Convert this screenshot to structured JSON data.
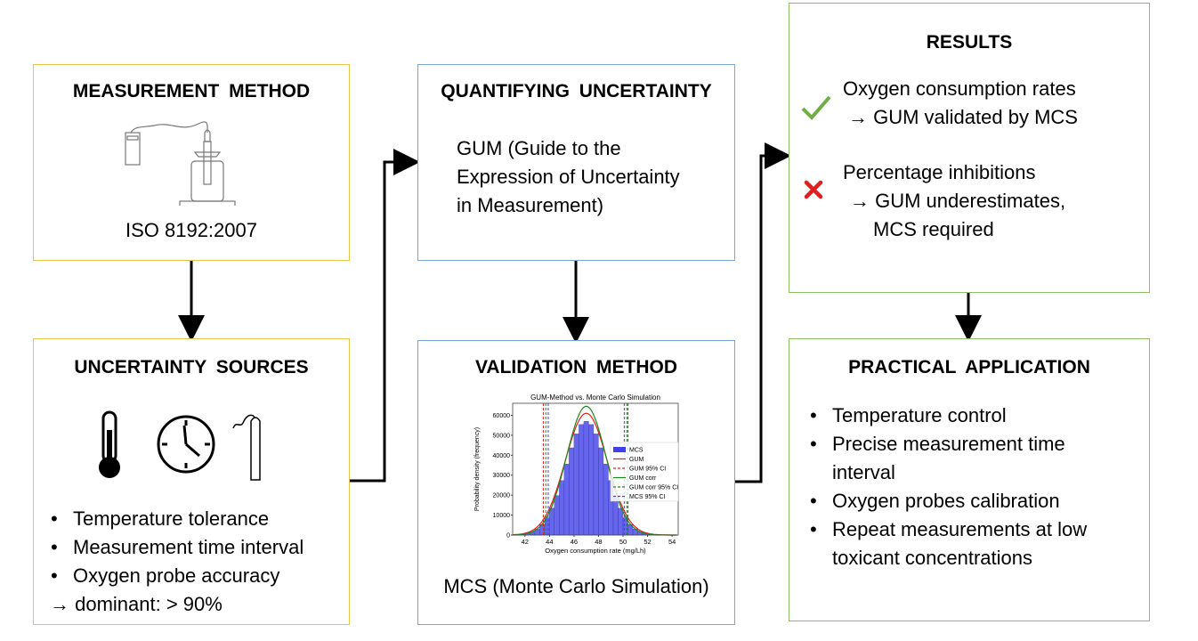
{
  "measurement": {
    "title": "MEASUREMENT  METHOD",
    "standard": "ISO 8192:2007"
  },
  "sources": {
    "title": "UNCERTAINTY  SOURCES",
    "items": [
      "Temperature tolerance",
      "Measurement time interval",
      "Oxygen probe accuracy"
    ],
    "conclusion": "→ dominant: > 90%"
  },
  "quantifying": {
    "title": "QUANTIFYING  UNCERTAINTY",
    "text": [
      "GUM (Guide to the",
      "Expression of Uncertainty",
      "in Measurement)"
    ]
  },
  "validation": {
    "title": "VALIDATION  METHOD",
    "caption": "MCS (Monte Carlo Simulation)"
  },
  "results": {
    "title": "RESULTS",
    "items": [
      {
        "icon": "check-icon",
        "line1": "Oxygen consumption rates",
        "line2": "→ GUM validated by MCS"
      },
      {
        "icon": "cross-icon",
        "line1": "Percentage inhibitions",
        "line2": "→ GUM underestimates,",
        "line3": "MCS required"
      }
    ]
  },
  "practical": {
    "title": "PRACTICAL  APPLICATION",
    "items": [
      "Temperature control",
      "Precise measurement time",
      "interval",
      "Oxygen probes calibration",
      "Repeat measurements at low",
      "toxicant concentrations"
    ]
  },
  "colors": {
    "check": "#70ad47",
    "cross": "#e02020",
    "mcs": "#4040e8",
    "gum": "#e02020",
    "gumcorr": "#1a8a1a"
  },
  "chart_data": {
    "type": "bar",
    "title": "GUM-Method vs. Monte Carlo Simulation",
    "xlabel": "Oxygen consumption rate (mg/Lh)",
    "ylabel": "Probability density (frequency)",
    "xlim": [
      41,
      54.5
    ],
    "ylim": [
      0,
      66000
    ],
    "xticks": [
      42,
      44,
      46,
      48,
      50,
      52,
      54
    ],
    "yticks": [
      0,
      10000,
      20000,
      30000,
      40000,
      50000,
      60000
    ],
    "bin_width": 0.4,
    "bins": [
      41.4,
      41.8,
      42.2,
      42.6,
      43.0,
      43.4,
      43.8,
      44.2,
      44.6,
      45.0,
      45.4,
      45.8,
      46.2,
      46.6,
      47.0,
      47.4,
      47.8,
      48.2,
      48.6,
      49.0,
      49.4,
      49.8,
      50.2,
      50.6,
      51.0,
      51.4,
      51.8,
      52.2,
      52.6,
      53.0
    ],
    "mcs": [
      180,
      400,
      830,
      1600,
      3000,
      5300,
      8700,
      13500,
      19800,
      27300,
      35600,
      43700,
      50700,
      55400,
      57000,
      55400,
      50700,
      43700,
      35600,
      27300,
      19800,
      13500,
      8700,
      5300,
      3000,
      1600,
      830,
      400,
      180,
      80
    ],
    "curves": [
      {
        "name": "GUM",
        "mean": 47,
        "sd": 1.72,
        "peak": 61000
      },
      {
        "name": "GUM corr",
        "mean": 47,
        "sd": 1.62,
        "peak": 64500
      }
    ],
    "ci": [
      {
        "name": "GUM 95% CI",
        "lo": 43.5,
        "hi": 50.4
      },
      {
        "name": "GUM corr 95% CI",
        "lo": 43.7,
        "hi": 50.3
      },
      {
        "name": "MCS 95% CI",
        "lo": 43.9,
        "hi": 50.1
      }
    ],
    "legend": [
      "MCS",
      "GUM",
      "GUM 95% CI",
      "GUM corr",
      "GUM corr 95% CI",
      "MCS 95% CI"
    ],
    "legend_position": "center-right"
  }
}
